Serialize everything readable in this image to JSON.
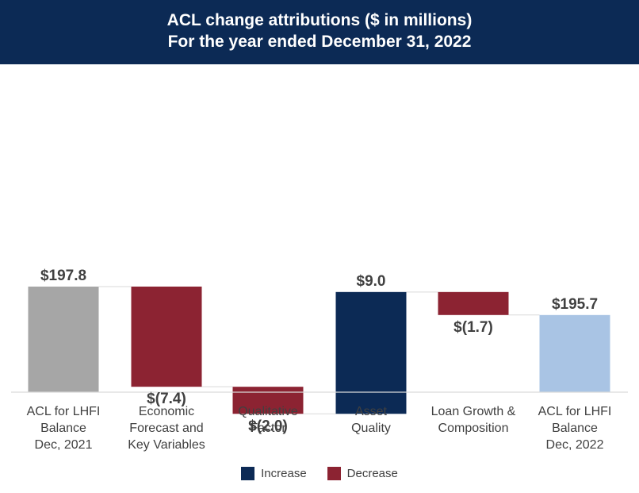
{
  "header": {
    "title_line1": "ACL change attributions ($ in millions)",
    "title_line2": "For the year ended December 31, 2022"
  },
  "colors": {
    "header_bg": "#0c2a55",
    "increase": "#0c2a55",
    "decrease": "#8c2332",
    "total_start": "#a6a6a6",
    "total_end": "#a9c4e4",
    "axis": "#d9d9d9",
    "connector": "#d9d9d9",
    "label_text": "#404040"
  },
  "chart_data": {
    "type": "waterfall",
    "title": "ACL change attributions ($ in millions)",
    "subtitle": "For the year ended December 31, 2022",
    "unit": "$ in millions",
    "categories": [
      [
        "ACL for LHFI",
        "Balance",
        "Dec, 2021"
      ],
      [
        "Economic",
        "Forecast and",
        "Key Variables"
      ],
      [
        "Qualitative",
        "Factor"
      ],
      [
        "Asset",
        "Quality"
      ],
      [
        "Loan Growth &",
        "Composition"
      ],
      [
        "ACL for LHFI",
        "Balance",
        "Dec, 2022"
      ]
    ],
    "points": [
      {
        "kind": "total",
        "value": 197.8,
        "label": "$197.8"
      },
      {
        "kind": "decrease",
        "value": -7.4,
        "label": "$(7.4)"
      },
      {
        "kind": "decrease",
        "value": -2.0,
        "label": "$(2.0)"
      },
      {
        "kind": "increase",
        "value": 9.0,
        "label": "$9.0"
      },
      {
        "kind": "decrease",
        "value": -1.7,
        "label": "$(1.7)"
      },
      {
        "kind": "total",
        "value": 195.7,
        "label": "$195.7"
      }
    ],
    "y_axis_visible": false,
    "grid": false,
    "legend_position": "bottom-center"
  },
  "legend": {
    "items": [
      {
        "label": "Increase",
        "color": "#0c2a55"
      },
      {
        "label": "Decrease",
        "color": "#8c2332"
      }
    ]
  }
}
